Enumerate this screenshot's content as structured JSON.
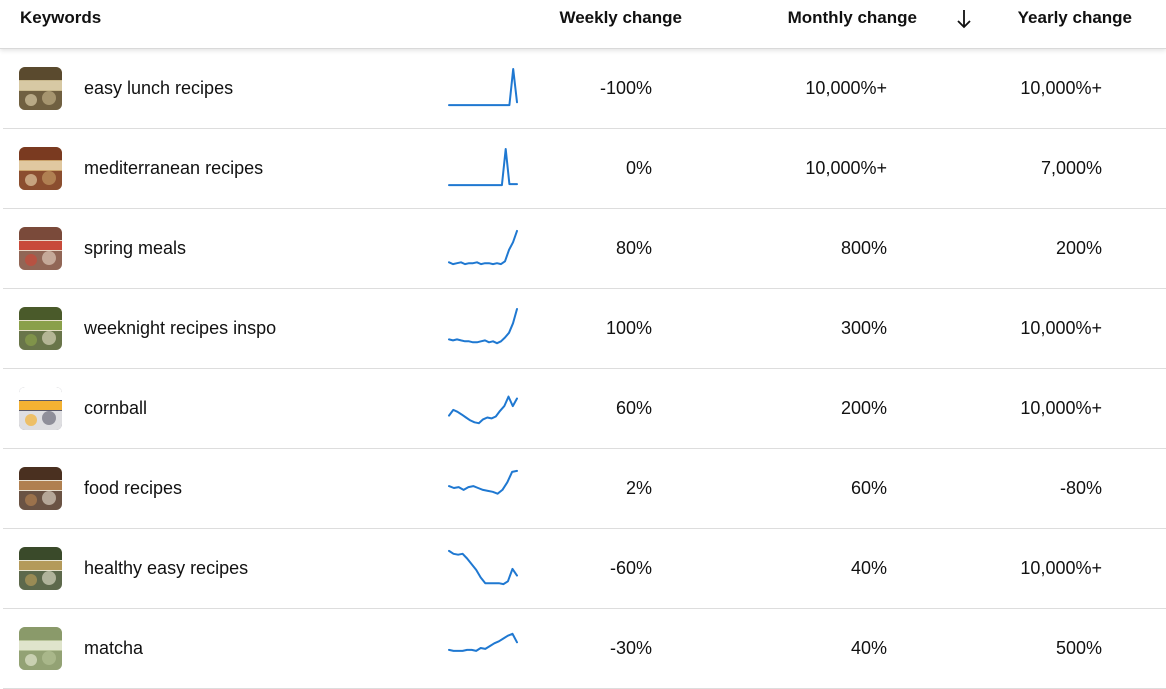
{
  "header": {
    "keywords": "Keywords",
    "weekly": "Weekly change",
    "monthly": "Monthly change",
    "sort_icon": "arrow-down-icon",
    "yearly": "Yearly change"
  },
  "colors": {
    "sparkline": "#1f78d1",
    "divider": "#dddddd"
  },
  "rows": [
    {
      "keyword": "easy lunch recipes",
      "weekly": "-100%",
      "monthly": "10,000%+",
      "yearly": "10,000%+",
      "thumb": [
        "#5a4a2e",
        "#c9b98e",
        "#d7c9a4"
      ],
      "trend": [
        2,
        2,
        2,
        2,
        2,
        2,
        2,
        2,
        2,
        2,
        2,
        2,
        2,
        2,
        2,
        2,
        2,
        40,
        5
      ]
    },
    {
      "keyword": "mediterranean recipes",
      "weekly": "0%",
      "monthly": "10,000%+",
      "yearly": "7,000%",
      "thumb": [
        "#7a3a20",
        "#caa26a",
        "#e0c8a0"
      ],
      "trend": [
        2,
        2,
        2,
        2,
        2,
        2,
        2,
        2,
        2,
        2,
        2,
        2,
        2,
        2,
        2,
        40,
        3,
        3,
        3
      ]
    },
    {
      "keyword": "spring meals",
      "weekly": "80%",
      "monthly": "800%",
      "yearly": "200%",
      "thumb": [
        "#7a4a3a",
        "#e8d6c6",
        "#c84a3a"
      ],
      "trend": [
        5,
        3,
        4,
        5,
        3,
        4,
        4,
        5,
        3,
        4,
        4,
        3,
        4,
        3,
        6,
        18,
        26,
        38
      ]
    },
    {
      "keyword": "weeknight recipes inspo",
      "weekly": "100%",
      "monthly": "300%",
      "yearly": "10,000%+",
      "thumb": [
        "#4a5a2a",
        "#e6e0c8",
        "#8aa04a"
      ],
      "trend": [
        8,
        7,
        8,
        7,
        6,
        6,
        5,
        5,
        6,
        7,
        5,
        6,
        4,
        6,
        10,
        15,
        25,
        40
      ]
    },
    {
      "keyword": "cornball",
      "weekly": "60%",
      "monthly": "200%",
      "yearly": "10,000%+",
      "thumb": [
        "#ffffff",
        "#5a5a6a",
        "#f4b233"
      ],
      "trend": [
        12,
        18,
        16,
        13,
        10,
        7,
        5,
        4,
        8,
        10,
        9,
        11,
        17,
        22,
        32,
        22,
        30
      ]
    },
    {
      "keyword": "food recipes",
      "weekly": "2%",
      "monthly": "60%",
      "yearly": "-80%",
      "thumb": [
        "#4a3020",
        "#e8e0d0",
        "#b08050"
      ],
      "trend": [
        22,
        20,
        21,
        18,
        21,
        22,
        20,
        18,
        17,
        16,
        14,
        18,
        26,
        37,
        38
      ]
    },
    {
      "keyword": "healthy easy recipes",
      "weekly": "-60%",
      "monthly": "40%",
      "yearly": "10,000%+",
      "thumb": [
        "#3a4a2a",
        "#e8e4d0",
        "#b49a5a"
      ],
      "trend": [
        38,
        35,
        34,
        35,
        30,
        24,
        18,
        10,
        4,
        4,
        4,
        4,
        3,
        6,
        19,
        12
      ]
    },
    {
      "keyword": "matcha",
      "weekly": "-30%",
      "monthly": "40%",
      "yearly": "500%",
      "thumb": [
        "#8a9a6a",
        "#b8c49a",
        "#dfe4cc"
      ],
      "trend": [
        18,
        17,
        17,
        17,
        18,
        18,
        17,
        20,
        19,
        22,
        25,
        27,
        30,
        33,
        35,
        26
      ]
    }
  ]
}
